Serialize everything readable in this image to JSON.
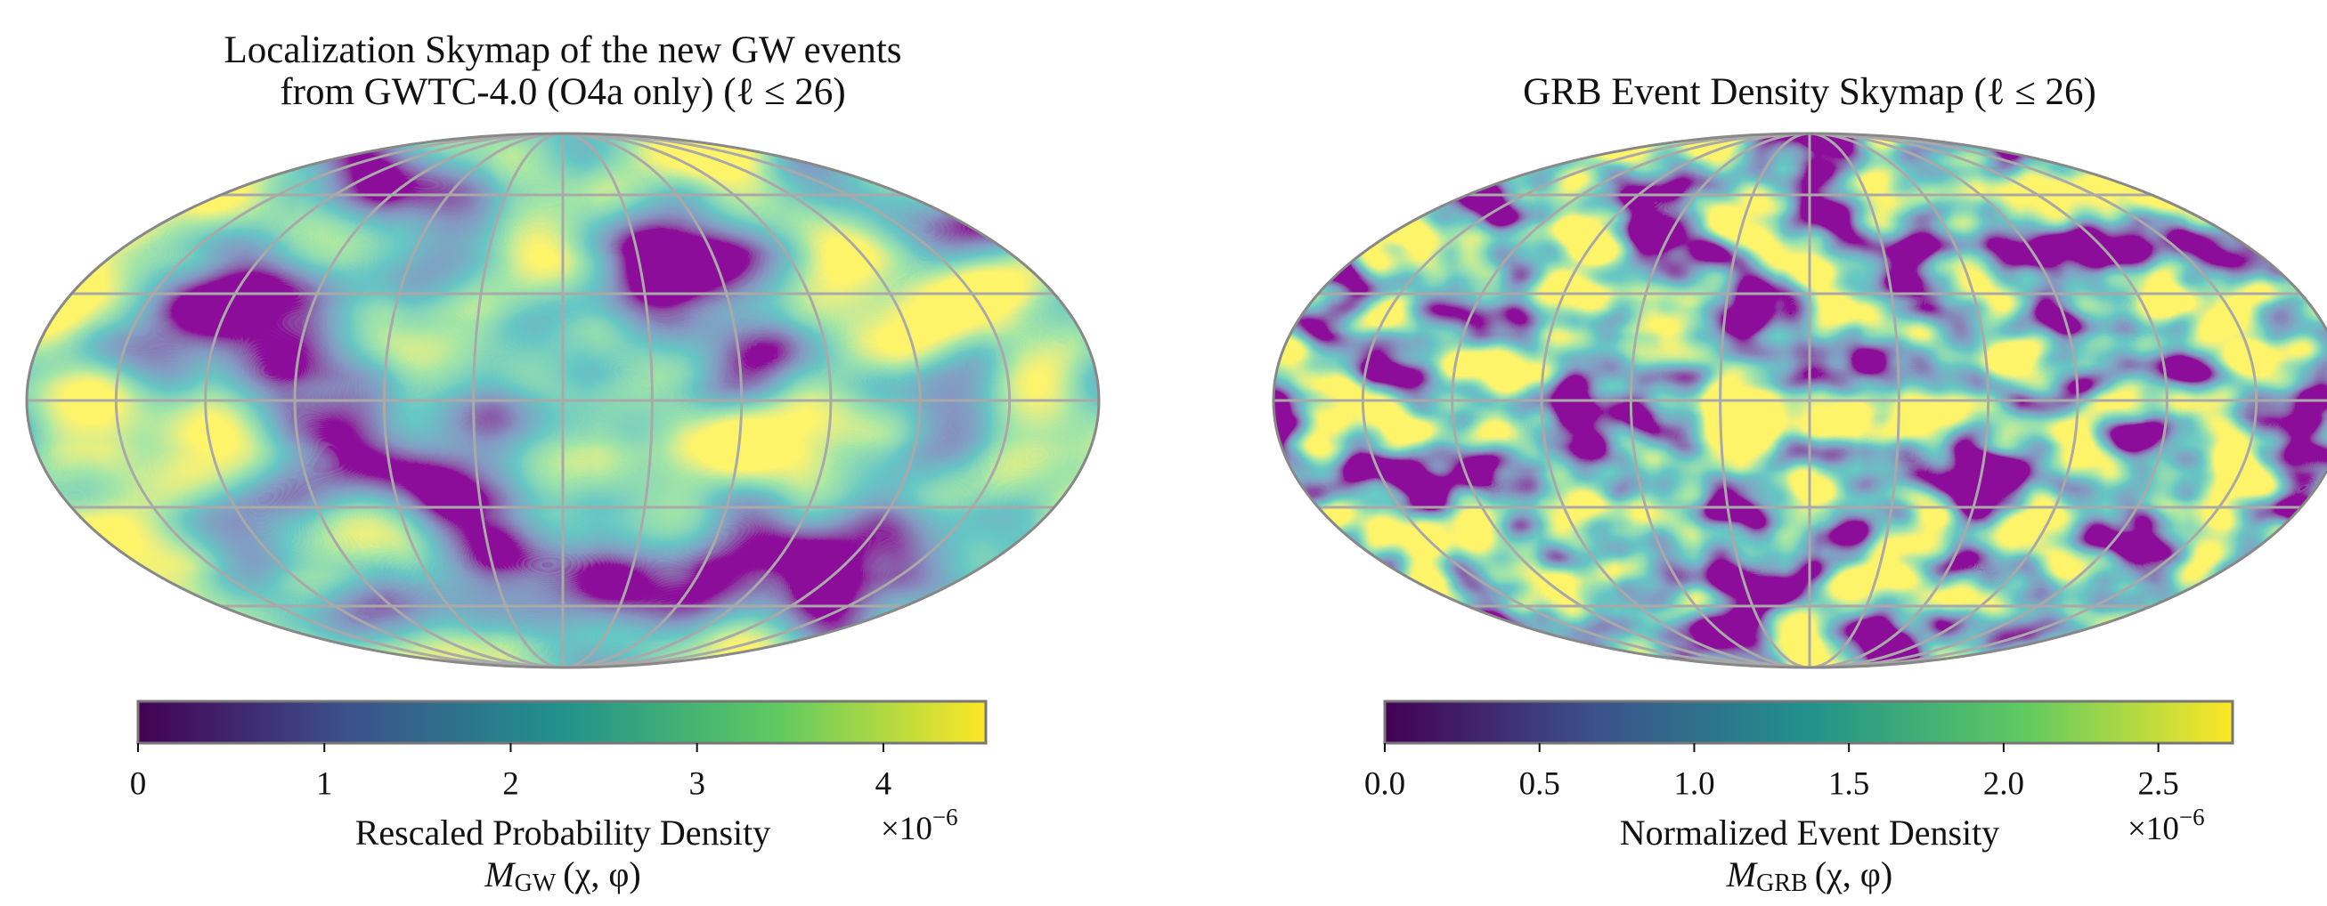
{
  "chart_data": [
    {
      "type": "skymap",
      "title": [
        "Localization Skymap of the new GW events",
        "from GWTC-4.0 (O4a only) (ℓ ≤ 26)"
      ],
      "colormap": [
        "#440154",
        "#3b528b",
        "#21918c",
        "#5ec962",
        "#fde725"
      ],
      "colorbar_label": "Rescaled Probability Density",
      "colorbar_symbol": "M",
      "colorbar_symbol_sub": "GW",
      "colorbar_symbol_args": "(χ, φ)",
      "offset_text": "×10",
      "offset_exponent": "−6",
      "xlim": [
        0,
        4.55
      ],
      "xticks": [
        0,
        1,
        2,
        3,
        4
      ]
    },
    {
      "type": "skymap",
      "title": [
        "GRB Event Density Skymap (ℓ ≤ 26)"
      ],
      "colormap": [
        "#440154",
        "#3b528b",
        "#21918c",
        "#5ec962",
        "#fde725"
      ],
      "colorbar_label": "Normalized Event Density",
      "colorbar_symbol": "M",
      "colorbar_symbol_sub": "GRB",
      "colorbar_symbol_args": "(χ, φ)",
      "offset_text": "×10",
      "offset_exponent": "−6",
      "xlim": [
        0,
        2.74
      ],
      "xticks": [
        {
          "value": 0,
          "label": "0.0"
        },
        0.5,
        {
          "value": 1,
          "label": "1.0"
        },
        1.5,
        {
          "value": 2,
          "label": "2.0"
        },
        2.5
      ]
    }
  ]
}
